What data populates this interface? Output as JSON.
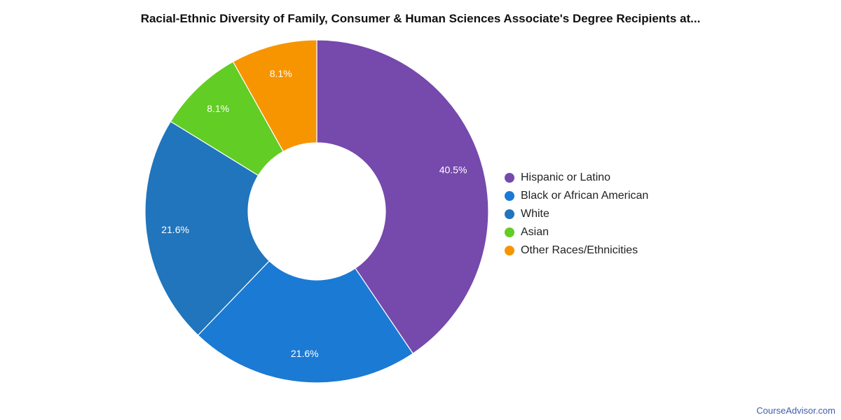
{
  "chart_data": {
    "type": "pie",
    "variant": "donut",
    "title": "Racial-Ethnic Diversity of Family, Consumer & Human Sciences Associate's Degree Recipients at...",
    "legend_position": "right",
    "slices": [
      {
        "name": "Hispanic or Latino",
        "value": 40.5,
        "label": "40.5%",
        "color": "#7649ad"
      },
      {
        "name": "Black or African American",
        "value": 21.6,
        "label": "21.6%",
        "color": "#1b7ad4"
      },
      {
        "name": "White",
        "value": 21.6,
        "label": "21.6%",
        "color": "#2075bc"
      },
      {
        "name": "Asian",
        "value": 8.1,
        "label": "8.1%",
        "color": "#62cd24"
      },
      {
        "name": "Other Races/Ethnicities",
        "value": 8.1,
        "label": "8.1%",
        "color": "#f79500"
      }
    ]
  },
  "watermark": "CourseAdvisor.com"
}
